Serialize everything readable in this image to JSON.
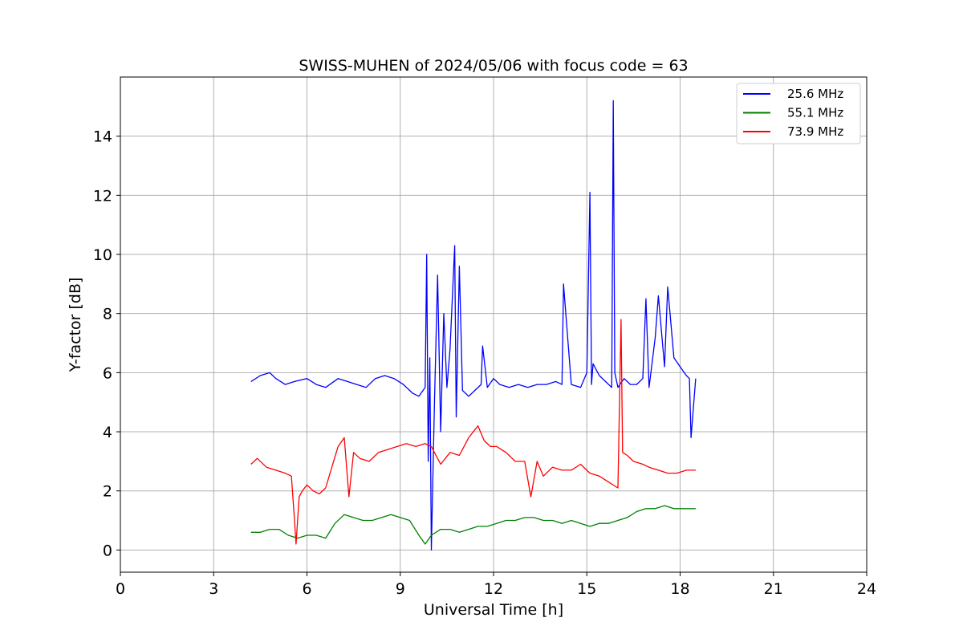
{
  "chart_data": {
    "type": "line",
    "title": "SWISS-MUHEN of 2024/05/06 with focus code = 63",
    "xlabel": "Universal Time [h]",
    "ylabel": "Y-factor [dB]",
    "xlim": [
      0,
      24
    ],
    "ylim": [
      -0.75,
      16
    ],
    "xticks": [
      0,
      3,
      6,
      9,
      12,
      15,
      18,
      21,
      24
    ],
    "yticks": [
      0,
      2,
      4,
      6,
      8,
      10,
      12,
      14
    ],
    "grid": true,
    "legend_position": "top-right",
    "series": [
      {
        "name": "25.6 MHz",
        "color": "#0000ff",
        "x": [
          4.2,
          4.5,
          4.8,
          5.0,
          5.3,
          5.6,
          6.0,
          6.3,
          6.6,
          7.0,
          7.3,
          7.6,
          7.9,
          8.2,
          8.5,
          8.8,
          9.1,
          9.4,
          9.6,
          9.8,
          9.85,
          9.9,
          9.95,
          10.0,
          10.1,
          10.2,
          10.3,
          10.4,
          10.5,
          10.6,
          10.75,
          10.8,
          10.9,
          11.0,
          11.2,
          11.4,
          11.6,
          11.65,
          11.8,
          12.0,
          12.2,
          12.5,
          12.8,
          13.1,
          13.4,
          13.7,
          14.0,
          14.2,
          14.25,
          14.5,
          14.8,
          15.0,
          15.1,
          15.15,
          15.2,
          15.4,
          15.6,
          15.8,
          15.85,
          15.9,
          16.0,
          16.2,
          16.4,
          16.6,
          16.8,
          16.9,
          17.0,
          17.2,
          17.3,
          17.5,
          17.6,
          17.8,
          18.0,
          18.2,
          18.3,
          18.35,
          18.5
        ],
        "y": [
          5.7,
          5.9,
          6.0,
          5.8,
          5.6,
          5.7,
          5.8,
          5.6,
          5.5,
          5.8,
          5.7,
          5.6,
          5.5,
          5.8,
          5.9,
          5.8,
          5.6,
          5.3,
          5.2,
          5.5,
          10.0,
          3.0,
          6.5,
          0.0,
          5.0,
          9.3,
          4.0,
          8.0,
          5.5,
          6.8,
          10.3,
          4.5,
          9.6,
          5.4,
          5.2,
          5.4,
          5.6,
          6.9,
          5.5,
          5.8,
          5.6,
          5.5,
          5.6,
          5.5,
          5.6,
          5.6,
          5.7,
          5.6,
          9.0,
          5.6,
          5.5,
          6.0,
          12.1,
          5.6,
          6.3,
          5.9,
          5.7,
          5.5,
          15.2,
          6.0,
          5.5,
          5.8,
          5.6,
          5.6,
          5.8,
          8.5,
          5.5,
          7.2,
          8.6,
          6.2,
          8.9,
          6.5,
          6.2,
          5.9,
          5.8,
          3.8,
          5.8
        ]
      },
      {
        "name": "55.1 MHz",
        "color": "#008000",
        "x": [
          4.2,
          4.5,
          4.8,
          5.1,
          5.4,
          5.7,
          6.0,
          6.3,
          6.6,
          6.9,
          7.2,
          7.5,
          7.8,
          8.1,
          8.4,
          8.7,
          9.0,
          9.3,
          9.6,
          9.8,
          10.0,
          10.3,
          10.6,
          10.9,
          11.2,
          11.5,
          11.8,
          12.1,
          12.4,
          12.7,
          13.0,
          13.3,
          13.6,
          13.9,
          14.2,
          14.5,
          14.8,
          15.1,
          15.4,
          15.7,
          16.0,
          16.3,
          16.6,
          16.9,
          17.2,
          17.5,
          17.8,
          18.1,
          18.5
        ],
        "y": [
          0.6,
          0.6,
          0.7,
          0.7,
          0.5,
          0.4,
          0.5,
          0.5,
          0.4,
          0.9,
          1.2,
          1.1,
          1.0,
          1.0,
          1.1,
          1.2,
          1.1,
          1.0,
          0.5,
          0.2,
          0.5,
          0.7,
          0.7,
          0.6,
          0.7,
          0.8,
          0.8,
          0.9,
          1.0,
          1.0,
          1.1,
          1.1,
          1.0,
          1.0,
          0.9,
          1.0,
          0.9,
          0.8,
          0.9,
          0.9,
          1.0,
          1.1,
          1.3,
          1.4,
          1.4,
          1.5,
          1.4,
          1.4,
          1.4
        ]
      },
      {
        "name": "73.9 MHz",
        "color": "#ff0000",
        "x": [
          4.2,
          4.4,
          4.7,
          5.0,
          5.3,
          5.5,
          5.6,
          5.65,
          5.75,
          5.85,
          6.0,
          6.2,
          6.4,
          6.6,
          6.8,
          7.0,
          7.2,
          7.35,
          7.5,
          7.7,
          8.0,
          8.3,
          8.6,
          8.9,
          9.2,
          9.5,
          9.8,
          10.0,
          10.3,
          10.6,
          10.9,
          11.2,
          11.5,
          11.7,
          11.9,
          12.1,
          12.4,
          12.7,
          13.0,
          13.2,
          13.4,
          13.6,
          13.9,
          14.2,
          14.5,
          14.8,
          15.1,
          15.4,
          15.7,
          16.0,
          16.1,
          16.15,
          16.3,
          16.5,
          16.8,
          17.0,
          17.3,
          17.6,
          17.9,
          18.2,
          18.5
        ],
        "y": [
          2.9,
          3.1,
          2.8,
          2.7,
          2.6,
          2.5,
          1.0,
          0.2,
          1.8,
          2.0,
          2.2,
          2.0,
          1.9,
          2.1,
          2.8,
          3.5,
          3.8,
          1.8,
          3.3,
          3.1,
          3.0,
          3.3,
          3.4,
          3.5,
          3.6,
          3.5,
          3.6,
          3.5,
          2.9,
          3.3,
          3.2,
          3.8,
          4.2,
          3.7,
          3.5,
          3.5,
          3.3,
          3.0,
          3.0,
          1.8,
          3.0,
          2.5,
          2.8,
          2.7,
          2.7,
          2.9,
          2.6,
          2.5,
          2.3,
          2.1,
          7.8,
          3.3,
          3.2,
          3.0,
          2.9,
          2.8,
          2.7,
          2.6,
          2.6,
          2.7,
          2.7
        ]
      }
    ]
  }
}
